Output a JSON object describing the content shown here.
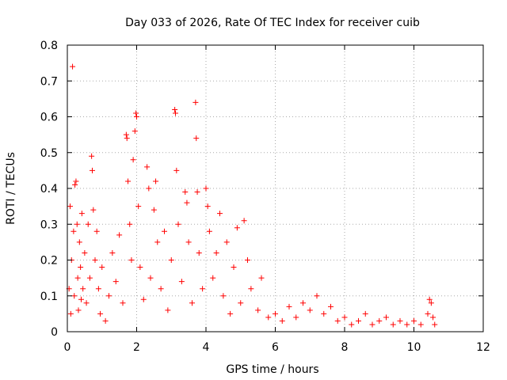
{
  "chart_data": {
    "type": "scatter",
    "title": "Day 033 of 2026, Rate Of TEC Index for receiver cuib",
    "xlabel": "GPS time / hours",
    "ylabel": "ROTI / TECUs",
    "xlim": [
      0,
      12
    ],
    "ylim": [
      0,
      0.8
    ],
    "x_ticks": [
      0,
      2,
      4,
      6,
      8,
      10,
      12
    ],
    "y_ticks": [
      0,
      0.1,
      0.2,
      0.3,
      0.4,
      0.5,
      0.6,
      0.7,
      0.8
    ],
    "x_tick_labels": [
      "0",
      "2",
      "4",
      "6",
      "8",
      "10",
      "12"
    ],
    "y_tick_labels": [
      "0",
      "0.1",
      "0.2",
      "0.3",
      "0.4",
      "0.5",
      "0.6",
      "0.7",
      "0.8"
    ],
    "grid": true,
    "marker": "+",
    "color": "#ff0000",
    "series": [
      {
        "points": [
          [
            0.05,
            0.12
          ],
          [
            0.08,
            0.35
          ],
          [
            0.1,
            0.05
          ],
          [
            0.12,
            0.2
          ],
          [
            0.15,
            0.74
          ],
          [
            0.18,
            0.28
          ],
          [
            0.2,
            0.1
          ],
          [
            0.22,
            0.41
          ],
          [
            0.25,
            0.42
          ],
          [
            0.28,
            0.3
          ],
          [
            0.3,
            0.15
          ],
          [
            0.32,
            0.06
          ],
          [
            0.35,
            0.25
          ],
          [
            0.38,
            0.18
          ],
          [
            0.4,
            0.09
          ],
          [
            0.42,
            0.33
          ],
          [
            0.45,
            0.12
          ],
          [
            0.5,
            0.22
          ],
          [
            0.55,
            0.08
          ],
          [
            0.6,
            0.3
          ],
          [
            0.65,
            0.15
          ],
          [
            0.7,
            0.49
          ],
          [
            0.72,
            0.45
          ],
          [
            0.75,
            0.34
          ],
          [
            0.8,
            0.2
          ],
          [
            0.85,
            0.28
          ],
          [
            0.9,
            0.12
          ],
          [
            0.95,
            0.05
          ],
          [
            1.0,
            0.18
          ],
          [
            1.1,
            0.03
          ],
          [
            1.2,
            0.1
          ],
          [
            1.3,
            0.22
          ],
          [
            1.4,
            0.14
          ],
          [
            1.5,
            0.27
          ],
          [
            1.6,
            0.08
          ],
          [
            1.7,
            0.55
          ],
          [
            1.72,
            0.54
          ],
          [
            1.75,
            0.42
          ],
          [
            1.8,
            0.3
          ],
          [
            1.85,
            0.2
          ],
          [
            1.9,
            0.48
          ],
          [
            1.95,
            0.56
          ],
          [
            1.98,
            0.61
          ],
          [
            2.0,
            0.6
          ],
          [
            2.05,
            0.35
          ],
          [
            2.1,
            0.18
          ],
          [
            2.2,
            0.09
          ],
          [
            2.3,
            0.46
          ],
          [
            2.35,
            0.4
          ],
          [
            2.4,
            0.15
          ],
          [
            2.5,
            0.34
          ],
          [
            2.55,
            0.42
          ],
          [
            2.6,
            0.25
          ],
          [
            2.7,
            0.12
          ],
          [
            2.8,
            0.28
          ],
          [
            2.9,
            0.06
          ],
          [
            3.0,
            0.2
          ],
          [
            3.1,
            0.62
          ],
          [
            3.12,
            0.61
          ],
          [
            3.15,
            0.45
          ],
          [
            3.2,
            0.3
          ],
          [
            3.3,
            0.14
          ],
          [
            3.4,
            0.39
          ],
          [
            3.45,
            0.36
          ],
          [
            3.5,
            0.25
          ],
          [
            3.6,
            0.08
          ],
          [
            3.7,
            0.64
          ],
          [
            3.72,
            0.54
          ],
          [
            3.75,
            0.39
          ],
          [
            3.8,
            0.22
          ],
          [
            3.9,
            0.12
          ],
          [
            4.0,
            0.4
          ],
          [
            4.05,
            0.35
          ],
          [
            4.1,
            0.28
          ],
          [
            4.2,
            0.15
          ],
          [
            4.3,
            0.22
          ],
          [
            4.4,
            0.33
          ],
          [
            4.5,
            0.1
          ],
          [
            4.6,
            0.25
          ],
          [
            4.7,
            0.05
          ],
          [
            4.8,
            0.18
          ],
          [
            4.9,
            0.29
          ],
          [
            5.0,
            0.08
          ],
          [
            5.1,
            0.31
          ],
          [
            5.2,
            0.2
          ],
          [
            5.3,
            0.12
          ],
          [
            5.5,
            0.06
          ],
          [
            5.6,
            0.15
          ],
          [
            5.8,
            0.04
          ],
          [
            6.0,
            0.05
          ],
          [
            6.2,
            0.03
          ],
          [
            6.4,
            0.07
          ],
          [
            6.6,
            0.04
          ],
          [
            6.8,
            0.08
          ],
          [
            7.0,
            0.06
          ],
          [
            7.2,
            0.1
          ],
          [
            7.4,
            0.05
          ],
          [
            7.6,
            0.07
          ],
          [
            7.8,
            0.03
          ],
          [
            8.0,
            0.04
          ],
          [
            8.2,
            0.02
          ],
          [
            8.4,
            0.03
          ],
          [
            8.6,
            0.05
          ],
          [
            8.8,
            0.02
          ],
          [
            9.0,
            0.03
          ],
          [
            9.2,
            0.04
          ],
          [
            9.4,
            0.02
          ],
          [
            9.6,
            0.03
          ],
          [
            9.8,
            0.02
          ],
          [
            10.0,
            0.03
          ],
          [
            10.2,
            0.02
          ],
          [
            10.4,
            0.05
          ],
          [
            10.45,
            0.09
          ],
          [
            10.5,
            0.08
          ],
          [
            10.55,
            0.04
          ],
          [
            10.6,
            0.02
          ]
        ]
      }
    ]
  }
}
